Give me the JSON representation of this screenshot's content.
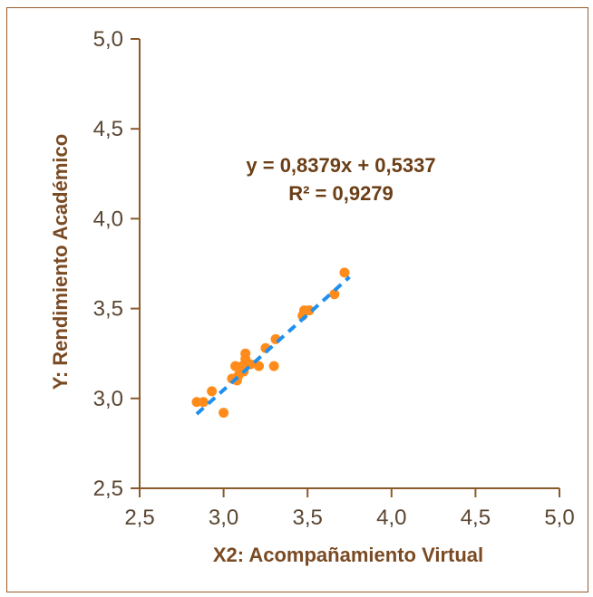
{
  "chart_data": {
    "type": "scatter",
    "xlabel": "X2: Acompañamiento Virtual",
    "ylabel": "Y: Rendimiento Académico",
    "xlim": [
      2.5,
      5.0
    ],
    "ylim": [
      2.5,
      5.0
    ],
    "x_ticks": [
      "2,5",
      "3,0",
      "3,5",
      "4,0",
      "4,5",
      "5,0"
    ],
    "y_ticks": [
      "2,5",
      "3,0",
      "3,5",
      "4,0",
      "4,5",
      "5,0"
    ],
    "grid": false,
    "points": [
      {
        "x": 2.84,
        "y": 2.98
      },
      {
        "x": 2.88,
        "y": 2.98
      },
      {
        "x": 2.93,
        "y": 3.04
      },
      {
        "x": 3.0,
        "y": 2.92
      },
      {
        "x": 3.05,
        "y": 3.11
      },
      {
        "x": 3.07,
        "y": 3.18
      },
      {
        "x": 3.08,
        "y": 3.1
      },
      {
        "x": 3.09,
        "y": 3.13
      },
      {
        "x": 3.11,
        "y": 3.18
      },
      {
        "x": 3.12,
        "y": 3.15
      },
      {
        "x": 3.13,
        "y": 3.22
      },
      {
        "x": 3.13,
        "y": 3.25
      },
      {
        "x": 3.16,
        "y": 3.19
      },
      {
        "x": 3.21,
        "y": 3.18
      },
      {
        "x": 3.25,
        "y": 3.28
      },
      {
        "x": 3.3,
        "y": 3.18
      },
      {
        "x": 3.31,
        "y": 3.33
      },
      {
        "x": 3.47,
        "y": 3.46
      },
      {
        "x": 3.48,
        "y": 3.49
      },
      {
        "x": 3.51,
        "y": 3.49
      },
      {
        "x": 3.66,
        "y": 3.58
      },
      {
        "x": 3.72,
        "y": 3.7
      }
    ],
    "trendline": {
      "slope": 0.8379,
      "intercept": 0.5337,
      "x_range": [
        2.84,
        3.75
      ],
      "equation_label": "y = 0,8379x  + 0,5337",
      "r2_label": "R² = 0,9279"
    },
    "colors": {
      "points": "#ff8c1a",
      "trendline": "#1f8ff0",
      "axes": "#8a5a2b",
      "text": "#7a4a22",
      "frame": "#9a5a2a"
    }
  }
}
